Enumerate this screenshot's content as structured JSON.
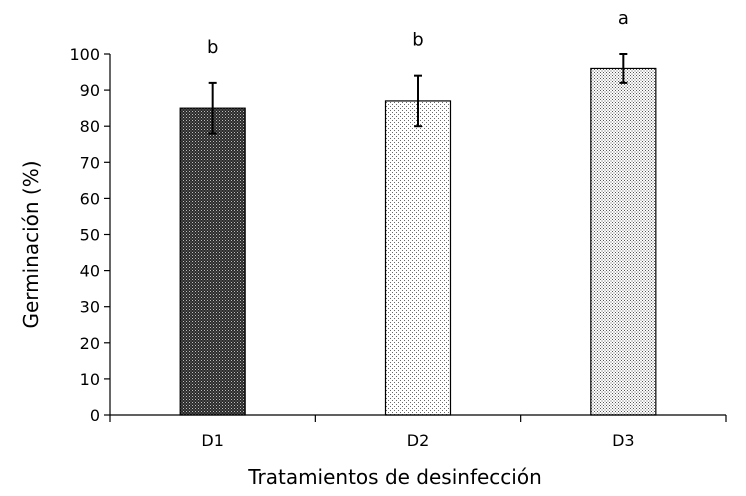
{
  "chart_data": {
    "type": "bar",
    "title": "",
    "xlabel": "Tratamientos de desinfección",
    "ylabel": "Germinación (%)",
    "categories": [
      "D1",
      "D2",
      "D3"
    ],
    "values": [
      85,
      87,
      96
    ],
    "errors": [
      7,
      7,
      4
    ],
    "significance": [
      "b",
      "b",
      "a"
    ],
    "bar_patterns": [
      "dense-dark-dots",
      "sparse-light-dots",
      "fine-dots"
    ],
    "ylim": [
      0,
      100
    ],
    "yticks": [
      0,
      10,
      20,
      30,
      40,
      50,
      60,
      70,
      80,
      90,
      100
    ],
    "grid": false,
    "legend": "none"
  }
}
